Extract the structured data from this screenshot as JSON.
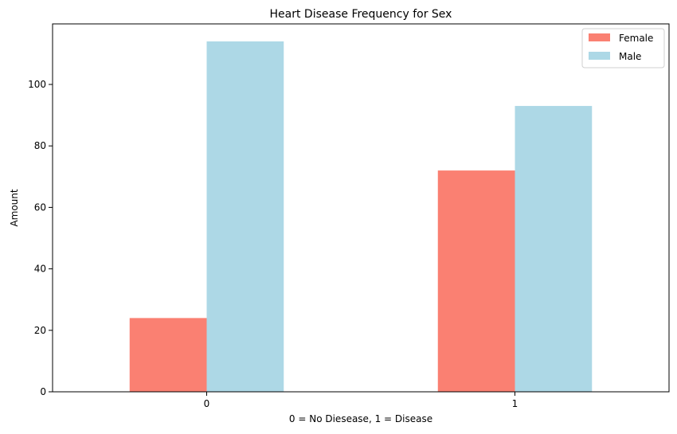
{
  "chart_data": {
    "type": "bar",
    "title": "Heart Disease Frequency for Sex",
    "xlabel": "0 = No Diesease, 1 = Disease",
    "ylabel": "Amount",
    "categories": [
      "0",
      "1"
    ],
    "series": [
      {
        "name": "Female",
        "values": [
          24,
          72
        ],
        "color": "#fa8072"
      },
      {
        "name": "Male",
        "values": [
          114,
          93
        ],
        "color": "#add8e6"
      }
    ],
    "ylim": [
      0,
      119.7
    ],
    "yticks": [
      0,
      20,
      40,
      60,
      80,
      100
    ],
    "grid": false,
    "legend_position": "top-right"
  }
}
